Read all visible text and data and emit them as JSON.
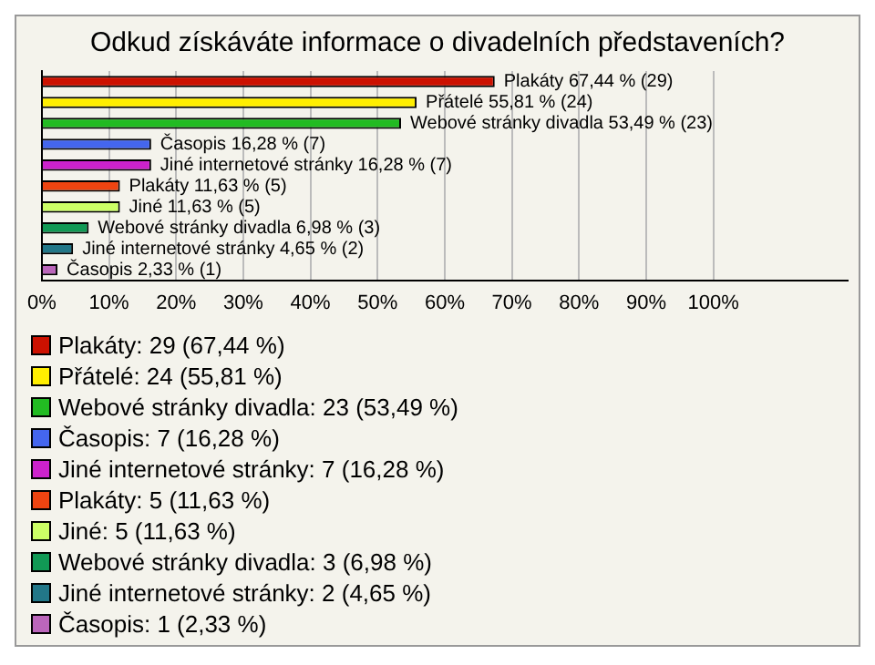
{
  "chart_data": {
    "type": "bar",
    "orientation": "horizontal",
    "stacked": true,
    "title": "Odkud získáváte informace o divadelních představeních?",
    "categories": [
      null,
      null,
      null,
      null,
      null,
      null,
      null,
      null,
      null,
      null
    ],
    "series": [
      {
        "name": "Plakáty: 29 (67,44 %)",
        "color": "#cc1100",
        "values": [
          67.44,
          null,
          null,
          null,
          null,
          null,
          null,
          null,
          null,
          null
        ],
        "value_labels": [
          "Plakáty 67,44 % (29)",
          null,
          null,
          null,
          null,
          null,
          null,
          null,
          null,
          null
        ]
      },
      {
        "name": "Přátelé: 24 (55,81 %)",
        "color": "#ffee00",
        "values": [
          null,
          55.81,
          null,
          null,
          null,
          null,
          null,
          null,
          null,
          null
        ],
        "value_labels": [
          null,
          "Přátelé 55,81 % (24)",
          null,
          null,
          null,
          null,
          null,
          null,
          null,
          null
        ]
      },
      {
        "name": "Webové stránky divadla: 23 (53,49 %)",
        "color": "#22bb22",
        "values": [
          null,
          null,
          53.49,
          null,
          null,
          null,
          null,
          null,
          null,
          null
        ],
        "value_labels": [
          null,
          null,
          "Webové stránky divadla 53,49 % (23)",
          null,
          null,
          null,
          null,
          null,
          null,
          null
        ]
      },
      {
        "name": "Časopis: 7 (16,28 %)",
        "color": "#4466ee",
        "values": [
          null,
          null,
          null,
          16.28,
          null,
          null,
          null,
          null,
          null,
          null
        ],
        "value_labels": [
          null,
          null,
          null,
          "Časopis 16,28 % (7)",
          null,
          null,
          null,
          null,
          null,
          null
        ]
      },
      {
        "name": "Jiné internetové stránky: 7 (16,28 %)",
        "color": "#cc22cc",
        "values": [
          null,
          null,
          null,
          null,
          16.28,
          null,
          null,
          null,
          null,
          null
        ],
        "value_labels": [
          null,
          null,
          null,
          null,
          "Jiné internetové stránky 16,28 % (7)",
          null,
          null,
          null,
          null,
          null
        ]
      },
      {
        "name": "Plakáty: 5 (11,63 %)",
        "color": "#ee4411",
        "values": [
          null,
          null,
          null,
          null,
          null,
          11.63,
          null,
          null,
          null,
          null
        ],
        "value_labels": [
          null,
          null,
          null,
          null,
          null,
          "Plakáty 11,63 % (5)",
          null,
          null,
          null,
          null
        ]
      },
      {
        "name": "Jiné: 5 (11,63 %)",
        "color": "#ccff66",
        "values": [
          null,
          null,
          null,
          null,
          null,
          null,
          11.63,
          null,
          null,
          null
        ],
        "value_labels": [
          null,
          null,
          null,
          null,
          null,
          null,
          "Jiné 11,63 % (5)",
          null,
          null,
          null
        ]
      },
      {
        "name": "Webové stránky divadla: 3 (6,98 %)",
        "color": "#119955",
        "values": [
          null,
          null,
          null,
          null,
          null,
          null,
          null,
          6.98,
          null,
          null
        ],
        "value_labels": [
          null,
          null,
          null,
          null,
          null,
          null,
          null,
          "Webové stránky divadla 6,98 % (3)",
          null,
          null
        ]
      },
      {
        "name": "Jiné internetové stránky: 2 (4,65 %)",
        "color": "#227788",
        "values": [
          null,
          null,
          null,
          null,
          null,
          null,
          null,
          null,
          4.65,
          null
        ],
        "value_labels": [
          null,
          null,
          null,
          null,
          null,
          null,
          null,
          null,
          "Jiné internetové stránky 4,65 % (2)",
          null
        ]
      },
      {
        "name": "Časopis: 1 (2,33 %)",
        "color": "#bb66bb",
        "values": [
          null,
          null,
          null,
          null,
          null,
          null,
          null,
          null,
          null,
          2.33
        ],
        "value_labels": [
          null,
          null,
          null,
          null,
          null,
          null,
          null,
          null,
          null,
          "Časopis 2,33 % (1)"
        ]
      }
    ],
    "xlim": [
      0,
      120
    ],
    "xticks": [
      {
        "value": 0,
        "label": "0%"
      },
      {
        "value": 10,
        "label": "10%"
      },
      {
        "value": 20,
        "label": "20%"
      },
      {
        "value": 30,
        "label": "30%"
      },
      {
        "value": 40,
        "label": "40%"
      },
      {
        "value": 50,
        "label": "50%"
      },
      {
        "value": 60,
        "label": "60%"
      },
      {
        "value": 70,
        "label": "70%"
      },
      {
        "value": 80,
        "label": "80%"
      },
      {
        "value": 90,
        "label": "90%"
      },
      {
        "value": 100,
        "label": "100%"
      }
    ],
    "grid": "x",
    "legend": "bottom"
  }
}
